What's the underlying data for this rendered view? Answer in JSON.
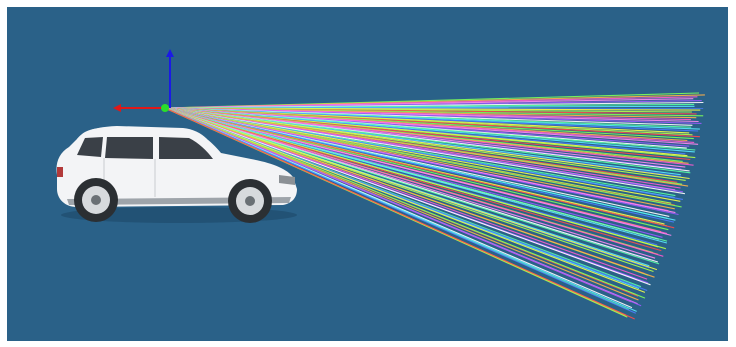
{
  "viewport": {
    "background_color": "#2a6188"
  },
  "axes_gizmo": {
    "x_axis_color": "#e01818",
    "y_axis_color": "#1a1ae6",
    "origin_color": "#2adf2a"
  },
  "lidar_rays": {
    "origin_icon": "sensor-origin-icon",
    "palette": [
      "#7dff5a",
      "#59e8ff",
      "#ff5ad0",
      "#f7ff4a",
      "#9a5aff",
      "#ff4a4a",
      "#5affa3",
      "#ffb14a",
      "#4a7dff",
      "#ff8af3",
      "#b5ff4a",
      "#ffffff"
    ]
  },
  "vehicle": {
    "icon": "suv-car-icon",
    "body_color": "#f3f4f6",
    "window_color": "#3a4047",
    "tire_color": "#2b2f33"
  }
}
